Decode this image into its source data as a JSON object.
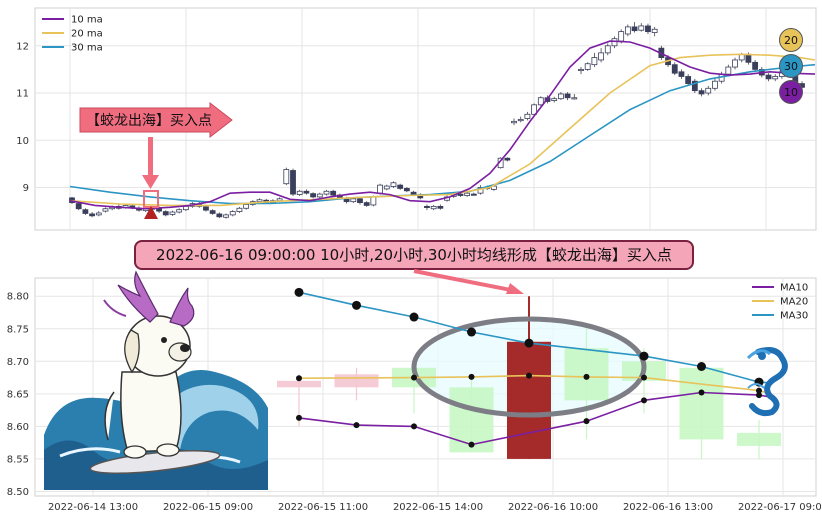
{
  "chart_data": [
    {
      "type": "candlestick",
      "title": "",
      "y_ticks": [
        9,
        10,
        11,
        12
      ],
      "ylim": [
        8.1,
        12.8
      ],
      "legend": {
        "placement": "top-left",
        "entries": [
          {
            "label": "10 ma",
            "color": "#7b1fa2"
          },
          {
            "label": "20 ma",
            "color": "#e8c35a"
          },
          {
            "label": "30 ma",
            "color": "#2b95c4"
          }
        ]
      },
      "candles": [
        [
          8.78,
          8.68,
          8.8,
          8.65
        ],
        [
          8.66,
          8.55,
          8.69,
          8.52
        ],
        [
          8.53,
          8.45,
          8.56,
          8.42
        ],
        [
          8.44,
          8.4,
          8.48,
          8.37
        ],
        [
          8.42,
          8.46,
          8.5,
          8.39
        ],
        [
          8.5,
          8.55,
          8.58,
          8.47
        ],
        [
          8.55,
          8.58,
          8.62,
          8.52
        ],
        [
          8.6,
          8.56,
          8.64,
          8.53
        ],
        [
          8.58,
          8.62,
          8.66,
          8.55
        ],
        [
          8.61,
          8.57,
          8.65,
          8.54
        ],
        [
          8.56,
          8.52,
          8.6,
          8.49
        ],
        [
          8.51,
          8.55,
          8.58,
          8.48
        ],
        [
          8.54,
          8.58,
          8.61,
          8.51
        ],
        [
          8.57,
          8.5,
          8.6,
          8.46
        ],
        [
          8.49,
          8.42,
          8.52,
          8.39
        ],
        [
          8.43,
          8.48,
          8.51,
          8.4
        ],
        [
          8.48,
          8.53,
          8.56,
          8.45
        ],
        [
          8.53,
          8.6,
          8.63,
          8.5
        ],
        [
          8.6,
          8.66,
          8.69,
          8.57
        ],
        [
          8.65,
          8.6,
          8.7,
          8.57
        ],
        [
          8.59,
          8.52,
          8.62,
          8.49
        ],
        [
          8.51,
          8.45,
          8.54,
          8.42
        ],
        [
          8.44,
          8.38,
          8.47,
          8.35
        ],
        [
          8.37,
          8.42,
          8.45,
          8.34
        ],
        [
          8.42,
          8.49,
          8.52,
          8.39
        ],
        [
          8.49,
          8.56,
          8.59,
          8.46
        ],
        [
          8.56,
          8.64,
          8.67,
          8.53
        ],
        [
          8.64,
          8.7,
          8.73,
          8.61
        ],
        [
          8.7,
          8.74,
          8.77,
          8.67
        ],
        [
          8.73,
          8.68,
          8.76,
          8.65
        ],
        [
          8.68,
          8.72,
          8.75,
          8.65
        ],
        [
          8.72,
          8.76,
          8.79,
          8.69
        ],
        [
          9.08,
          9.38,
          9.42,
          9.05
        ],
        [
          9.36,
          8.86,
          9.4,
          8.82
        ],
        [
          8.85,
          8.92,
          8.95,
          8.82
        ],
        [
          8.92,
          8.88,
          8.96,
          8.85
        ],
        [
          8.87,
          8.8,
          8.9,
          8.77
        ],
        [
          8.8,
          8.86,
          8.89,
          8.77
        ],
        [
          8.86,
          8.92,
          8.95,
          8.83
        ],
        [
          8.92,
          8.84,
          8.95,
          8.81
        ],
        [
          8.84,
          8.78,
          8.87,
          8.75
        ],
        [
          8.77,
          8.7,
          8.8,
          8.66
        ],
        [
          8.7,
          8.76,
          8.79,
          8.67
        ],
        [
          8.76,
          8.68,
          8.79,
          8.64
        ],
        [
          8.68,
          8.62,
          8.71,
          8.59
        ],
        [
          8.63,
          8.8,
          8.83,
          8.6
        ],
        [
          8.88,
          9.05,
          9.08,
          8.85
        ],
        [
          8.97,
          9.03,
          9.06,
          8.94
        ],
        [
          9.02,
          9.1,
          9.13,
          8.99
        ],
        [
          9.05,
          8.98,
          9.08,
          8.95
        ],
        [
          8.98,
          8.93,
          9.01,
          8.9
        ],
        [
          8.9,
          8.85,
          8.93,
          8.82
        ],
        [
          8.84,
          8.78,
          8.88,
          8.75
        ],
        [
          8.6,
          8.58,
          8.64,
          8.52
        ],
        [
          8.55,
          8.6,
          8.63,
          8.52
        ],
        [
          8.6,
          8.56,
          8.64,
          8.53
        ],
        [
          8.73,
          8.8,
          8.83,
          8.7
        ],
        [
          8.81,
          8.86,
          8.89,
          8.78
        ],
        [
          8.86,
          8.83,
          8.89,
          8.8
        ],
        [
          8.83,
          8.88,
          8.91,
          8.8
        ],
        [
          8.86,
          8.85,
          8.89,
          8.83
        ],
        [
          8.88,
          9.0,
          9.05,
          8.85
        ],
        [
          9.0,
          8.99,
          9.04,
          8.95
        ],
        [
          8.96,
          9.03,
          9.06,
          8.93
        ],
        [
          9.42,
          9.62,
          9.64,
          9.4
        ],
        [
          9.62,
          9.58,
          9.64,
          9.55
        ],
        [
          10.37,
          10.4,
          10.46,
          10.32
        ],
        [
          10.42,
          10.44,
          10.5,
          10.38
        ],
        [
          10.46,
          10.55,
          10.6,
          10.42
        ],
        [
          10.55,
          10.75,
          10.78,
          10.5
        ],
        [
          10.75,
          10.9,
          10.93,
          10.72
        ],
        [
          10.9,
          10.82,
          10.95,
          10.78
        ],
        [
          10.84,
          10.88,
          10.92,
          10.8
        ],
        [
          10.88,
          10.98,
          11.02,
          10.85
        ],
        [
          10.98,
          10.9,
          11.02,
          10.85
        ],
        [
          10.88,
          10.9,
          10.98,
          10.86
        ],
        [
          11.48,
          11.5,
          11.55,
          11.4
        ],
        [
          11.5,
          11.62,
          11.65,
          11.47
        ],
        [
          11.6,
          11.75,
          11.85,
          11.55
        ],
        [
          11.7,
          11.85,
          11.95,
          11.65
        ],
        [
          11.85,
          12.0,
          12.05,
          11.8
        ],
        [
          12.0,
          12.15,
          12.2,
          11.95
        ],
        [
          12.1,
          12.3,
          12.35,
          12.05
        ],
        [
          12.25,
          12.4,
          12.45,
          12.2
        ],
        [
          12.4,
          12.32,
          12.5,
          12.28
        ],
        [
          12.33,
          12.42,
          12.48,
          12.3
        ],
        [
          12.42,
          12.3,
          12.47,
          12.25
        ],
        [
          12.28,
          12.35,
          12.4,
          12.2
        ],
        [
          11.95,
          11.75,
          12.0,
          11.7
        ],
        [
          11.75,
          11.6,
          11.8,
          11.55
        ],
        [
          11.6,
          11.42,
          11.65,
          11.38
        ],
        [
          11.45,
          11.35,
          11.5,
          11.3
        ],
        [
          11.35,
          11.2,
          11.4,
          11.15
        ],
        [
          11.25,
          11.05,
          11.3,
          11.0
        ],
        [
          11.05,
          10.98,
          11.1,
          10.93
        ],
        [
          11.0,
          11.1,
          11.15,
          10.95
        ],
        [
          11.1,
          11.25,
          11.3,
          11.05
        ],
        [
          11.25,
          11.4,
          11.45,
          11.2
        ],
        [
          11.4,
          11.55,
          11.6,
          11.35
        ],
        [
          11.55,
          11.7,
          11.75,
          11.5
        ],
        [
          11.7,
          11.82,
          11.85,
          11.65
        ],
        [
          11.82,
          11.65,
          11.86,
          11.6
        ],
        [
          11.65,
          11.5,
          11.7,
          11.45
        ],
        [
          11.5,
          11.38,
          11.55,
          11.33
        ],
        [
          11.38,
          11.3,
          11.42,
          11.25
        ],
        [
          11.3,
          11.35,
          11.4,
          11.25
        ],
        [
          11.35,
          11.45,
          11.5,
          11.3
        ],
        [
          11.45,
          11.4,
          11.5,
          11.35
        ],
        [
          11.35,
          11.2,
          11.4,
          11.15
        ],
        [
          11.2,
          11.12,
          11.25,
          11.05
        ]
      ],
      "ma10": [
        [
          0,
          8.72
        ],
        [
          25,
          8.62
        ],
        [
          50,
          8.58
        ],
        [
          75,
          8.55
        ],
        [
          100,
          8.58
        ],
        [
          120,
          8.62
        ],
        [
          140,
          8.7
        ],
        [
          160,
          8.88
        ],
        [
          180,
          8.9
        ],
        [
          200,
          8.9
        ],
        [
          220,
          8.75
        ],
        [
          240,
          8.72
        ],
        [
          260,
          8.8
        ],
        [
          280,
          8.86
        ],
        [
          300,
          8.9
        ],
        [
          320,
          8.85
        ],
        [
          340,
          8.72
        ],
        [
          360,
          8.7
        ],
        [
          380,
          8.8
        ],
        [
          400,
          8.98
        ],
        [
          420,
          9.3
        ],
        [
          440,
          9.8
        ],
        [
          460,
          10.4
        ],
        [
          480,
          10.95
        ],
        [
          500,
          11.55
        ],
        [
          520,
          11.95
        ],
        [
          540,
          12.1
        ],
        [
          560,
          12.08
        ],
        [
          580,
          11.95
        ],
        [
          600,
          11.75
        ],
        [
          620,
          11.55
        ],
        [
          640,
          11.42
        ],
        [
          660,
          11.38
        ],
        [
          680,
          11.4
        ],
        [
          700,
          11.45
        ],
        [
          720,
          11.42
        ],
        [
          745,
          11.4
        ]
      ],
      "ma20": [
        [
          0,
          8.72
        ],
        [
          50,
          8.65
        ],
        [
          100,
          8.62
        ],
        [
          150,
          8.62
        ],
        [
          200,
          8.7
        ],
        [
          250,
          8.75
        ],
        [
          300,
          8.8
        ],
        [
          340,
          8.83
        ],
        [
          380,
          8.85
        ],
        [
          420,
          9.0
        ],
        [
          460,
          9.5
        ],
        [
          500,
          10.25
        ],
        [
          540,
          11.0
        ],
        [
          580,
          11.58
        ],
        [
          610,
          11.75
        ],
        [
          640,
          11.8
        ],
        [
          670,
          11.82
        ],
        [
          700,
          11.8
        ],
        [
          730,
          11.75
        ],
        [
          745,
          11.7
        ]
      ],
      "ma30": [
        [
          0,
          9.02
        ],
        [
          40,
          8.9
        ],
        [
          80,
          8.8
        ],
        [
          120,
          8.72
        ],
        [
          160,
          8.66
        ],
        [
          200,
          8.66
        ],
        [
          240,
          8.7
        ],
        [
          280,
          8.78
        ],
        [
          320,
          8.82
        ],
        [
          360,
          8.85
        ],
        [
          400,
          8.92
        ],
        [
          440,
          9.15
        ],
        [
          480,
          9.55
        ],
        [
          520,
          10.1
        ],
        [
          560,
          10.65
        ],
        [
          600,
          11.05
        ],
        [
          640,
          11.3
        ],
        [
          680,
          11.45
        ],
        [
          720,
          11.55
        ],
        [
          745,
          11.6
        ]
      ],
      "end_badges": [
        {
          "label": "20",
          "value": 11.98
        },
        {
          "label": "30",
          "value": 11.55
        },
        {
          "label": "10",
          "value": 11.0
        }
      ],
      "annotation": {
        "text": "【蛟龙出海】买入点",
        "candle_index": 11
      }
    },
    {
      "type": "candlestick",
      "title": "",
      "y_ticks": [
        8.5,
        8.55,
        8.6,
        8.65,
        8.7,
        8.75,
        8.8
      ],
      "y_tick_labels": [
        "8.50",
        "8.55",
        "8.60",
        "8.65",
        "8.70",
        "8.75",
        "8.80"
      ],
      "ylim": [
        8.493,
        8.828
      ],
      "x_tick_labels": [
        "2022-06-14 13:00",
        "2022-06-15 09:00",
        "2022-06-15 11:00",
        "2022-06-15 14:00",
        "2022-06-16 10:00",
        "2022-06-16 13:00",
        "2022-06-17 09:00"
      ],
      "legend": {
        "placement": "top-right",
        "entries": [
          {
            "label": "MA10",
            "color": "#7b1fa2"
          },
          {
            "label": "MA20",
            "color": "#e8c35a"
          },
          {
            "label": "MA30",
            "color": "#2b95c4"
          }
        ]
      },
      "candles": [
        {
          "x": 0,
          "open": 8.67,
          "close": 8.66,
          "high": 8.68,
          "low": 8.6,
          "color": "#f4c6d0"
        },
        {
          "x": 1,
          "open": 8.66,
          "close": 8.68,
          "high": 8.69,
          "low": 8.64,
          "color": "#f4c6d0"
        },
        {
          "x": 2,
          "open": 8.69,
          "close": 8.66,
          "high": 8.7,
          "low": 8.62,
          "color": "#c6f7c4"
        },
        {
          "x": 3,
          "open": 8.66,
          "close": 8.56,
          "high": 8.68,
          "low": 8.56,
          "color": "#c6f7c4"
        },
        {
          "x": 4,
          "open": 8.55,
          "close": 8.73,
          "high": 8.8,
          "low": 8.55,
          "color": "#a52a2a"
        },
        {
          "x": 5,
          "open": 8.72,
          "close": 8.64,
          "high": 8.75,
          "low": 8.58,
          "color": "#c6f7c4"
        },
        {
          "x": 6,
          "open": 8.7,
          "close": 8.67,
          "high": 8.72,
          "low": 8.62,
          "color": "#c6f7c4"
        },
        {
          "x": 7,
          "open": 8.69,
          "close": 8.58,
          "high": 8.7,
          "low": 8.55,
          "color": "#c6f7c4"
        },
        {
          "x": 8,
          "open": 8.59,
          "close": 8.57,
          "high": 8.61,
          "low": 8.55,
          "color": "#c6f7c4"
        }
      ],
      "ma10": [
        [
          0,
          8.613
        ],
        [
          0.5,
          8.602
        ],
        [
          1,
          8.6
        ],
        [
          1.5,
          8.572
        ],
        [
          2.5,
          8.608
        ],
        [
          3,
          8.64
        ],
        [
          3.5,
          8.652
        ],
        [
          4,
          8.648
        ]
      ],
      "ma20": [
        [
          0,
          8.674
        ],
        [
          1,
          8.675
        ],
        [
          1.5,
          8.676
        ],
        [
          2,
          8.678
        ],
        [
          2.5,
          8.676
        ],
        [
          3,
          8.675
        ],
        [
          4,
          8.655
        ]
      ],
      "ma30": [
        [
          0,
          8.806
        ],
        [
          0.5,
          8.786
        ],
        [
          1,
          8.768
        ],
        [
          1.5,
          8.745
        ],
        [
          2,
          8.728
        ],
        [
          3,
          8.708
        ],
        [
          3.5,
          8.692
        ],
        [
          4,
          8.668
        ]
      ],
      "banner": "2022-06-16 09:00:00 10小时,20小时,30小时均线形成【蛟龙出海】买入点"
    }
  ]
}
